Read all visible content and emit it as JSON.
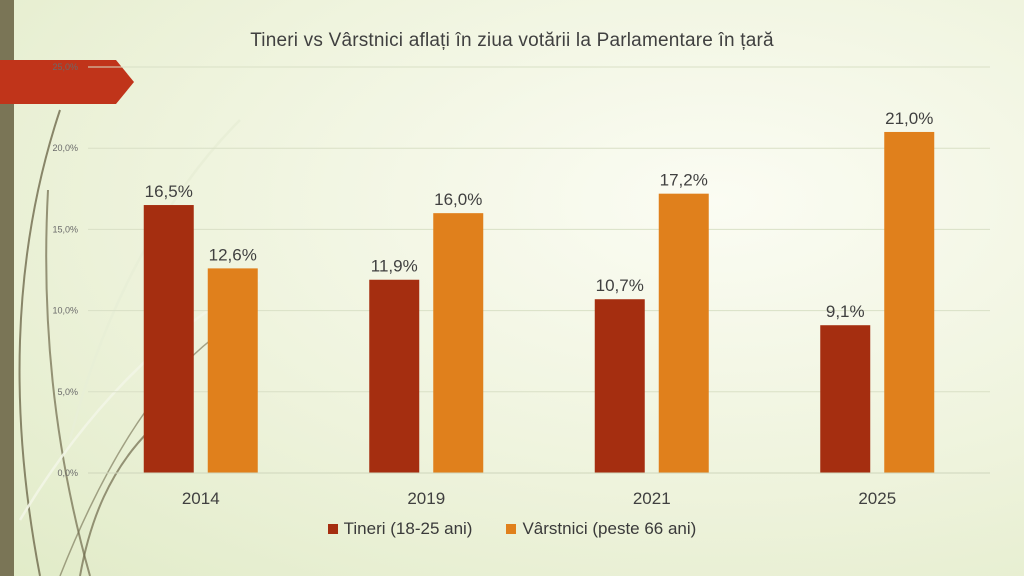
{
  "colors": {
    "tineri": "#a52e10",
    "varstnici": "#e0801c",
    "accent_tab": "#c0341a",
    "stripe": "#7a7556"
  },
  "chart_data": {
    "type": "bar",
    "title": "Tineri vs Vârstnici aflați în ziua votării la Parlamentare în țară",
    "categories": [
      "2014",
      "2019",
      "2021",
      "2025"
    ],
    "series": [
      {
        "name": "Tineri (18-25 ani)",
        "values": [
          16.5,
          11.9,
          10.7,
          9.1
        ],
        "labels": [
          "16,5%",
          "11,9%",
          "10,7%",
          "9,1%"
        ]
      },
      {
        "name": "Vârstnici (peste 66 ani)",
        "values": [
          12.6,
          16.0,
          17.2,
          21.0
        ],
        "labels": [
          "12,6%",
          "16,0%",
          "17,2%",
          "21,0%"
        ]
      }
    ],
    "ylim": [
      0,
      25
    ],
    "yticks": [
      "0,0%",
      "5,0%",
      "10,0%",
      "15,0%",
      "20,0%",
      "25,0%"
    ],
    "grid": true,
    "legend_position": "bottom"
  }
}
